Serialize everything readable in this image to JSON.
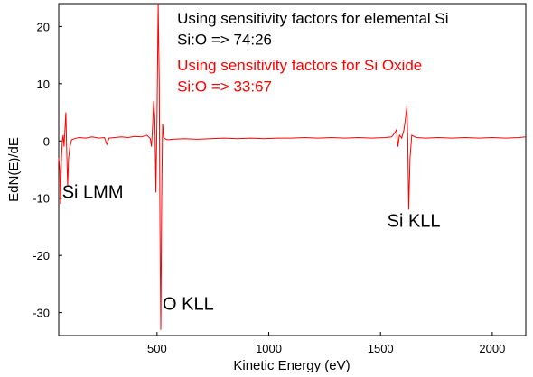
{
  "chart_data": {
    "type": "line",
    "title": "",
    "xlabel": "Kinetic Energy (eV)",
    "ylabel": "EdN(E)/dE",
    "xlim": [
      60,
      2150
    ],
    "ylim": [
      -34,
      24
    ],
    "xticks": [
      500,
      1000,
      1500,
      2000
    ],
    "yticks": [
      20,
      10,
      0,
      -10,
      -20,
      -30
    ],
    "grid": false,
    "series": [
      {
        "name": "",
        "color": "#ff0000",
        "points": [
          [
            60,
            -3
          ],
          [
            65,
            -5
          ],
          [
            68,
            -11
          ],
          [
            72,
            -3
          ],
          [
            76,
            0
          ],
          [
            80,
            1
          ],
          [
            84,
            -1
          ],
          [
            88,
            2
          ],
          [
            92,
            5
          ],
          [
            96,
            -2
          ],
          [
            100,
            -8
          ],
          [
            104,
            -3
          ],
          [
            110,
            -1
          ],
          [
            118,
            0.2
          ],
          [
            130,
            0.4
          ],
          [
            150,
            0.6
          ],
          [
            180,
            0.5
          ],
          [
            210,
            0.7
          ],
          [
            240,
            0.5
          ],
          [
            265,
            0.6
          ],
          [
            275,
            -0.6
          ],
          [
            285,
            0.5
          ],
          [
            310,
            0.6
          ],
          [
            340,
            0.7
          ],
          [
            370,
            0.6
          ],
          [
            400,
            0.8
          ],
          [
            430,
            0.7
          ],
          [
            455,
            1
          ],
          [
            470,
            0.4
          ],
          [
            475,
            -1
          ],
          [
            480,
            2.5
          ],
          [
            485,
            7
          ],
          [
            490,
            4
          ],
          [
            495,
            -9
          ],
          [
            500,
            4
          ],
          [
            505,
            24
          ],
          [
            510,
            10
          ],
          [
            513,
            -15
          ],
          [
            517,
            -33
          ],
          [
            521,
            -10
          ],
          [
            525,
            3
          ],
          [
            530,
            0.5
          ],
          [
            545,
            0.2
          ],
          [
            570,
            0.3
          ],
          [
            620,
            0.4
          ],
          [
            680,
            0.3
          ],
          [
            740,
            0.4
          ],
          [
            800,
            0.5
          ],
          [
            860,
            0.4
          ],
          [
            920,
            0.5
          ],
          [
            980,
            0.4
          ],
          [
            1040,
            0.5
          ],
          [
            1100,
            0.5
          ],
          [
            1160,
            0.6
          ],
          [
            1220,
            0.5
          ],
          [
            1280,
            0.6
          ],
          [
            1340,
            0.5
          ],
          [
            1400,
            0.6
          ],
          [
            1460,
            0.5
          ],
          [
            1520,
            0.6
          ],
          [
            1550,
            0.7
          ],
          [
            1565,
            1.5
          ],
          [
            1572,
            2
          ],
          [
            1578,
            -1
          ],
          [
            1585,
            1
          ],
          [
            1595,
            0.5
          ],
          [
            1605,
            2
          ],
          [
            1612,
            4
          ],
          [
            1618,
            6
          ],
          [
            1622,
            0
          ],
          [
            1626,
            -12
          ],
          [
            1632,
            -3
          ],
          [
            1640,
            1
          ],
          [
            1660,
            0.6
          ],
          [
            1700,
            0.5
          ],
          [
            1760,
            0.6
          ],
          [
            1820,
            0.5
          ],
          [
            1880,
            0.6
          ],
          [
            1940,
            0.5
          ],
          [
            2000,
            0.6
          ],
          [
            2060,
            0.5
          ],
          [
            2120,
            0.6
          ],
          [
            2150,
            0.7
          ]
        ]
      }
    ],
    "peak_labels": [
      {
        "text": "Si LMM",
        "x": 75,
        "y": -10
      },
      {
        "text": "O KLL",
        "x": 525,
        "y": -29.5
      },
      {
        "text": "Si KLL",
        "x": 1530,
        "y": -15
      }
    ],
    "annotations": [
      {
        "text": "Using sensitivity factors for elemental Si",
        "color": "#000000",
        "x": 590,
        "y": 20.5
      },
      {
        "text": "Si:O => 74:26",
        "color": "#000000",
        "x": 590,
        "y": 16.8
      },
      {
        "text": "Using sensitivity factors for Si Oxide",
        "color": "#ff0000",
        "x": 590,
        "y": 12.3
      },
      {
        "text": "Si:O => 33:67",
        "color": "#ff0000",
        "x": 590,
        "y": 8.6
      }
    ]
  }
}
